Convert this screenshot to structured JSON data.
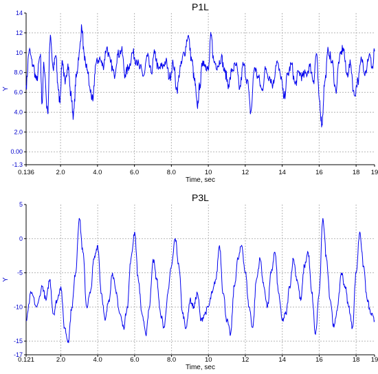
{
  "colors": {
    "line": "#0000ee",
    "ytick": "#0000cc",
    "grid": "#b5b5b5",
    "axis": "#000000"
  },
  "chart_data": [
    {
      "type": "line",
      "title": "P1L",
      "xlabel": "Time, sec",
      "ylabel": "Y",
      "xlim": [
        0.136,
        19
      ],
      "ylim": [
        -1.3,
        14
      ],
      "yticks": [
        "14",
        "12",
        "10",
        "8.0",
        "6.0",
        "4.0",
        "2.0",
        "0.00",
        "-1.3"
      ],
      "ytick_values": [
        14,
        12,
        10,
        8,
        6,
        4,
        2,
        0,
        -1.3
      ],
      "xticks": [
        "0.136",
        "2.0",
        "4.0",
        "6.0",
        "8.0",
        "10",
        "12",
        "14",
        "16",
        "18",
        "19"
      ],
      "xtick_values": [
        0.136,
        2,
        4,
        6,
        8,
        10,
        12,
        14,
        16,
        18,
        19
      ],
      "grid": true,
      "series": [
        {
          "x": [
            0.136,
            0.3,
            0.5,
            0.7,
            0.9,
            1.0,
            1.1,
            1.3,
            1.45,
            1.6,
            1.75,
            1.85,
            1.95,
            2.1,
            2.25,
            2.4,
            2.55,
            2.7,
            2.85,
            3.0,
            3.15,
            3.3,
            3.45,
            3.6,
            3.75,
            3.9,
            4.1,
            4.3,
            4.5,
            4.7,
            4.9,
            5.1,
            5.3,
            5.5,
            5.7,
            5.9,
            6.1,
            6.3,
            6.5,
            6.7,
            6.9,
            7.1,
            7.3,
            7.5,
            7.7,
            7.9,
            8.1,
            8.3,
            8.5,
            8.7,
            8.9,
            9.1,
            9.25,
            9.4,
            9.55,
            9.7,
            9.85,
            10.0,
            10.15,
            10.3,
            10.5,
            10.7,
            10.9,
            11.1,
            11.3,
            11.5,
            11.7,
            11.9,
            12.1,
            12.3,
            12.5,
            12.7,
            12.9,
            13.1,
            13.3,
            13.5,
            13.7,
            13.9,
            14.1,
            14.3,
            14.5,
            14.7,
            14.9,
            15.1,
            15.3,
            15.5,
            15.7,
            15.85,
            16.0,
            16.15,
            16.3,
            16.5,
            16.7,
            16.9,
            17.1,
            17.3,
            17.5,
            17.7,
            17.9,
            18.1,
            18.3,
            18.5,
            18.7,
            18.9,
            19.0
          ],
          "y": [
            6.7,
            10.2,
            8.8,
            7.2,
            9.6,
            5.0,
            8.8,
            4.0,
            11.8,
            8.4,
            9.7,
            6.8,
            5.2,
            9.2,
            6.8,
            8.9,
            5.8,
            3.7,
            7.5,
            9.8,
            12.5,
            9.2,
            8.3,
            6.2,
            5.1,
            8.8,
            9.4,
            8.7,
            10.5,
            9.0,
            7.8,
            9.8,
            10.2,
            7.8,
            8.6,
            10.0,
            9.3,
            8.4,
            7.7,
            9.6,
            8.0,
            9.9,
            8.3,
            8.6,
            9.1,
            7.5,
            8.9,
            6.3,
            8.6,
            10.0,
            11.7,
            9.3,
            7.2,
            4.6,
            6.8,
            9.2,
            8.8,
            8.2,
            11.7,
            9.1,
            8.7,
            9.5,
            8.0,
            6.8,
            8.3,
            8.7,
            6.4,
            8.8,
            7.3,
            4.0,
            8.5,
            7.5,
            6.2,
            8.3,
            7.6,
            6.8,
            9.1,
            7.8,
            5.5,
            7.8,
            8.8,
            6.8,
            8.0,
            7.6,
            7.9,
            8.6,
            7.2,
            9.9,
            5.4,
            2.8,
            7.0,
            10.2,
            9.0,
            6.2,
            9.4,
            10.5,
            7.8,
            8.8,
            5.7,
            7.2,
            9.3,
            8.1,
            9.7,
            8.5,
            10.3
          ]
        }
      ]
    },
    {
      "type": "line",
      "title": "P3L",
      "xlabel": "Time, sec",
      "ylabel": "Y",
      "xlim": [
        0.121,
        19
      ],
      "ylim": [
        -17,
        5
      ],
      "yticks": [
        "5",
        "0",
        "-5",
        "-10",
        "-15",
        "-17"
      ],
      "ytick_values": [
        5,
        0,
        -5,
        -10,
        -15,
        -17
      ],
      "xticks": [
        "0.121",
        "2.0",
        "4.0",
        "6.0",
        "8.0",
        "10",
        "12",
        "14",
        "16",
        "18",
        "19"
      ],
      "xtick_values": [
        0.121,
        2,
        4,
        6,
        8,
        10,
        12,
        14,
        16,
        18,
        19
      ],
      "grid": true,
      "series": [
        {
          "x": [
            0.121,
            0.4,
            0.7,
            1.0,
            1.2,
            1.4,
            1.6,
            1.8,
            2.0,
            2.2,
            2.4,
            2.6,
            2.8,
            3.0,
            3.2,
            3.4,
            3.6,
            3.8,
            4.0,
            4.2,
            4.4,
            4.6,
            4.8,
            5.0,
            5.2,
            5.4,
            5.6,
            5.8,
            6.0,
            6.2,
            6.4,
            6.6,
            6.8,
            7.0,
            7.2,
            7.4,
            7.6,
            7.8,
            8.0,
            8.2,
            8.4,
            8.6,
            8.8,
            9.0,
            9.2,
            9.4,
            9.6,
            9.8,
            10.0,
            10.2,
            10.4,
            10.6,
            10.8,
            11.0,
            11.2,
            11.4,
            11.6,
            11.8,
            12.0,
            12.2,
            12.4,
            12.6,
            12.8,
            13.0,
            13.2,
            13.4,
            13.6,
            13.8,
            14.0,
            14.2,
            14.4,
            14.6,
            14.8,
            15.0,
            15.2,
            15.4,
            15.6,
            15.8,
            16.0,
            16.2,
            16.4,
            16.6,
            16.8,
            17.0,
            17.2,
            17.4,
            17.6,
            17.8,
            18.0,
            18.2,
            18.4,
            18.6,
            18.8,
            19.0
          ],
          "y": [
            -12,
            -8,
            -10,
            -7,
            -9,
            -6,
            -11,
            -9,
            -7,
            -13,
            -15,
            -10,
            -5,
            3,
            -2,
            -10,
            -8,
            -3,
            -1,
            -8,
            -12,
            -9,
            -5,
            -8,
            -11,
            -13,
            -10,
            -3,
            1,
            -6,
            -11,
            -14,
            -10,
            -3,
            -6,
            -11,
            -13,
            -8,
            -4,
            0,
            -4,
            -11,
            -13,
            -9,
            -10,
            -8,
            -12,
            -11,
            -10,
            -8,
            -6,
            -1,
            -8,
            -12,
            -14,
            -7,
            -3,
            -1,
            -5,
            -10,
            -13,
            -6,
            -3,
            -7,
            -10,
            -5,
            -2,
            -8,
            -12,
            -11,
            -7,
            -3,
            -6,
            -9,
            -4,
            -2,
            -8,
            -14,
            -8,
            3,
            -3,
            -9,
            -13,
            -10,
            -5,
            -7,
            -10,
            -13,
            -5,
            1,
            -4,
            -9,
            -11,
            -12
          ]
        }
      ]
    }
  ]
}
